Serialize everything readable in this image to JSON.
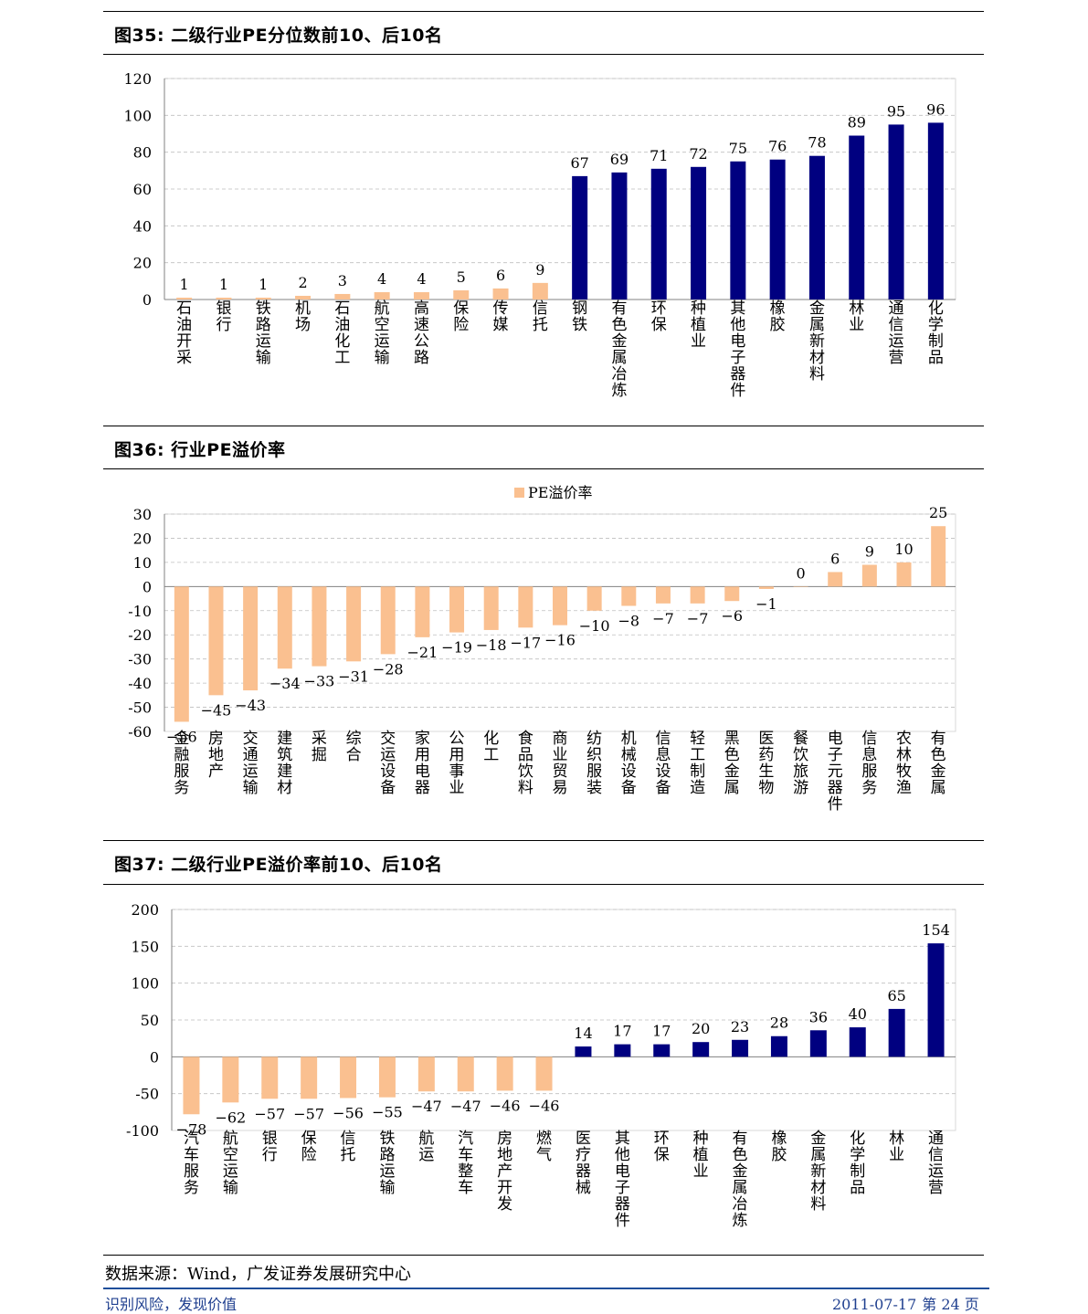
{
  "colors": {
    "orange": "#FAC090",
    "navy": "#000080",
    "grid": "#BFBFBF",
    "axis": "#808080"
  },
  "figures": [
    {
      "title": "图35:  二级行业PE分位数前10、后10名"
    },
    {
      "title": "图36:  行业PE溢价率"
    },
    {
      "title": "图37:  二级行业PE溢价率前10、后10名"
    }
  ],
  "chart_data": [
    {
      "type": "bar",
      "title": "图35:  二级行业PE分位数前10、后10名",
      "categories": [
        "石油开采",
        "银行",
        "铁路运输",
        "机场",
        "石油化工",
        "航空运输",
        "高速公路",
        "保险",
        "传媒",
        "信托",
        "钢铁",
        "有色金属冶炼",
        "环保",
        "种植业",
        "其他电子器件",
        "橡胶",
        "金属新材料",
        "林业",
        "通信运营",
        "化学制品"
      ],
      "values": [
        1,
        1,
        1,
        2,
        3,
        4,
        4,
        5,
        6,
        9,
        67,
        69,
        71,
        72,
        75,
        76,
        78,
        89,
        95,
        96
      ],
      "bar_colors": [
        "orange",
        "orange",
        "orange",
        "orange",
        "orange",
        "orange",
        "orange",
        "orange",
        "orange",
        "orange",
        "navy",
        "navy",
        "navy",
        "navy",
        "navy",
        "navy",
        "navy",
        "navy",
        "navy",
        "navy"
      ],
      "ylim": [
        0,
        120
      ],
      "yticks": [
        0,
        20,
        40,
        60,
        80,
        100,
        120
      ],
      "grid": true,
      "legend": null
    },
    {
      "type": "bar",
      "title": "图36:  行业PE溢价率",
      "categories": [
        "金融服务",
        "房地产",
        "交通运输",
        "建筑建材",
        "采掘",
        "综合",
        "交运设备",
        "家用电器",
        "公用事业",
        "化工",
        "食品饮料",
        "商业贸易",
        "纺织服装",
        "机械设备",
        "信息设备",
        "轻工制造",
        "黑色金属",
        "医药生物",
        "餐饮旅游",
        "电子元器件",
        "信息服务",
        "农林牧渔",
        "有色金属"
      ],
      "series": [
        {
          "name": "PE溢价率",
          "values": [
            -56,
            -45,
            -43,
            -34,
            -33,
            -31,
            -28,
            -21,
            -19,
            -18,
            -17,
            -16,
            -10,
            -8,
            -7,
            -7,
            -6,
            -1,
            0,
            6,
            9,
            10,
            25
          ]
        }
      ],
      "ylim": [
        -60,
        30
      ],
      "yticks": [
        -60,
        -50,
        -40,
        -30,
        -20,
        -10,
        0,
        10,
        20,
        30
      ],
      "grid": true,
      "legend": "top-center"
    },
    {
      "type": "bar",
      "title": "图37:  二级行业PE溢价率前10、后10名",
      "categories": [
        "汽车服务",
        "航空运输",
        "银行",
        "保险",
        "信托",
        "铁路运输",
        "航运",
        "汽车整车",
        "房地产开发",
        "燃气",
        "医疗器械",
        "其他电子器件",
        "环保",
        "种植业",
        "有色金属冶炼",
        "橡胶",
        "金属新材料",
        "化学制品",
        "林业",
        "通信运营"
      ],
      "values": [
        -78,
        -62,
        -57,
        -57,
        -56,
        -55,
        -47,
        -47,
        -46,
        -46,
        14,
        17,
        17,
        20,
        23,
        28,
        36,
        40,
        65,
        154
      ],
      "bar_colors": [
        "orange",
        "orange",
        "orange",
        "orange",
        "orange",
        "orange",
        "orange",
        "orange",
        "orange",
        "orange",
        "navy",
        "navy",
        "navy",
        "navy",
        "navy",
        "navy",
        "navy",
        "navy",
        "navy",
        "navy"
      ],
      "ylim": [
        -100,
        200
      ],
      "yticks": [
        -100,
        -50,
        0,
        50,
        100,
        150,
        200
      ],
      "grid": true,
      "legend": null
    }
  ],
  "source": "数据来源：Wind，广发证券发展研究中心",
  "footer": {
    "left": "识别风险，发现价值",
    "date": "2011-07-17",
    "page": "第 24 页"
  }
}
